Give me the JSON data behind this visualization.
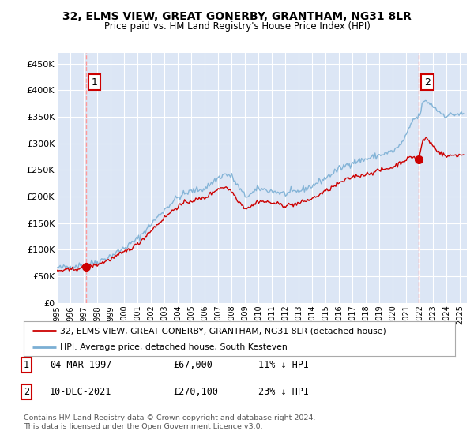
{
  "title": "32, ELMS VIEW, GREAT GONERBY, GRANTHAM, NG31 8LR",
  "subtitle": "Price paid vs. HM Land Registry's House Price Index (HPI)",
  "xlim_start": 1995.0,
  "xlim_end": 2025.5,
  "ylim_bottom": 0,
  "ylim_top": 470000,
  "yticks": [
    0,
    50000,
    100000,
    150000,
    200000,
    250000,
    300000,
    350000,
    400000,
    450000
  ],
  "ytick_labels": [
    "£0",
    "£50K",
    "£100K",
    "£150K",
    "£200K",
    "£250K",
    "£300K",
    "£350K",
    "£400K",
    "£450K"
  ],
  "xticks": [
    1995,
    1996,
    1997,
    1998,
    1999,
    2000,
    2001,
    2002,
    2003,
    2004,
    2005,
    2006,
    2007,
    2008,
    2009,
    2010,
    2011,
    2012,
    2013,
    2014,
    2015,
    2016,
    2017,
    2018,
    2019,
    2020,
    2021,
    2022,
    2023,
    2024,
    2025
  ],
  "background_color": "#dce6f5",
  "grid_color": "#ffffff",
  "hpi_color": "#7bafd4",
  "price_color": "#cc0000",
  "sale1_x": 1997.17,
  "sale1_y": 67000,
  "sale2_x": 2021.94,
  "sale2_y": 270100,
  "annotation_color": "#cc0000",
  "dashed_color": "#ff9999",
  "footnote": "Contains HM Land Registry data © Crown copyright and database right 2024.\nThis data is licensed under the Open Government Licence v3.0.",
  "legend_line1": "32, ELMS VIEW, GREAT GONERBY, GRANTHAM, NG31 8LR (detached house)",
  "legend_line2": "HPI: Average price, detached house, South Kesteven"
}
